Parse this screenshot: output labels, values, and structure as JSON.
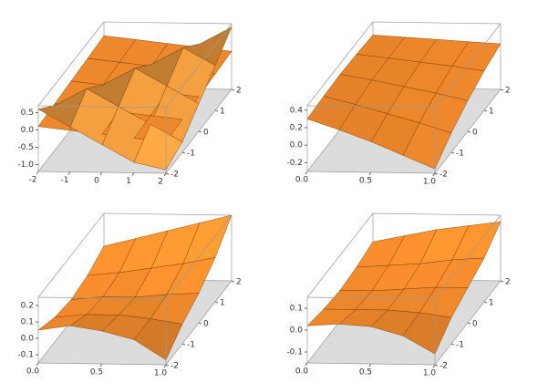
{
  "chart_data": [
    {
      "type": "surface",
      "xlim": [
        -2,
        2
      ],
      "ylim": [
        -2,
        2
      ],
      "zlim": [
        -1.2,
        0.7
      ],
      "xticks": [
        -2,
        -1,
        0,
        1,
        2
      ],
      "yticks": [
        -2,
        -1,
        0,
        1,
        2
      ],
      "zticks": [
        0.5,
        {
          "value": 0,
          "label": "0.0"
        },
        -0.5,
        {
          "value": -1,
          "label": "-1.0"
        }
      ],
      "x": [
        -2,
        -1,
        0,
        1,
        2
      ],
      "y": [
        -2,
        -1,
        0,
        1,
        2
      ],
      "series": [
        {
          "color": "#f0892c",
          "z": [
            [
              0.1,
              0.15,
              0.2,
              0.25,
              0.3
            ],
            [
              0,
              0.05,
              0.1,
              0.15,
              0.2
            ],
            [
              -0.1,
              -0.05,
              0,
              0.05,
              0.1
            ],
            [
              -0.2,
              -0.15,
              -0.1,
              -0.05,
              0
            ],
            [
              -0.3,
              -0.25,
              -0.2,
              -0.15,
              -0.1
            ]
          ]
        },
        {
          "color": "#f4a040",
          "z": [
            [
              0.6,
              0.1,
              -0.4,
              -0.9,
              -1.1
            ],
            [
              0.1,
              0.6,
              0.1,
              -0.4,
              -0.9
            ],
            [
              -0.4,
              0.1,
              0.6,
              0.1,
              -0.4
            ],
            [
              -0.9,
              -0.4,
              0.1,
              0.6,
              0.1
            ],
            [
              -1.1,
              -0.9,
              -0.4,
              0.1,
              0.6
            ]
          ]
        }
      ]
    },
    {
      "type": "surface",
      "xlim": [
        0,
        1
      ],
      "ylim": [
        -2,
        2
      ],
      "zlim": [
        -0.3,
        0.45
      ],
      "xticks": [
        {
          "value": 0,
          "label": "0.0"
        },
        0.5,
        {
          "value": 1,
          "label": "1.0"
        }
      ],
      "yticks": [
        -2,
        -1,
        0,
        1,
        2
      ],
      "zticks": [
        0.4,
        0.2,
        {
          "value": 0,
          "label": "0.0"
        },
        -0.2
      ],
      "x": [
        0,
        0.25,
        0.5,
        0.75,
        1
      ],
      "y": [
        -2,
        -1,
        0,
        1,
        2
      ],
      "series": [
        {
          "color": "#f0892c",
          "z": [
            [
              0.3,
              0.32,
              0.33,
              0.32,
              0.3
            ],
            [
              0.18,
              0.23,
              0.27,
              0.28,
              0.28
            ],
            [
              0.05,
              0.13,
              0.2,
              0.24,
              0.26
            ],
            [
              -0.1,
              0.03,
              0.13,
              0.2,
              0.24
            ],
            [
              -0.25,
              -0.08,
              0.05,
              0.15,
              0.22
            ]
          ]
        }
      ]
    },
    {
      "type": "surface",
      "xlim": [
        0,
        1
      ],
      "ylim": [
        -2,
        2
      ],
      "zlim": [
        -0.15,
        0.25
      ],
      "xticks": [
        {
          "value": 0,
          "label": "0.0"
        },
        0.5,
        {
          "value": 1,
          "label": "1.0"
        }
      ],
      "yticks": [
        -2,
        -1,
        0,
        1,
        2
      ],
      "zticks": [
        0.2,
        0.1,
        {
          "value": 0,
          "label": "0.0"
        },
        -0.1
      ],
      "x": [
        0,
        0.25,
        0.5,
        0.75,
        1
      ],
      "y": [
        -2,
        -1,
        0,
        1,
        2
      ],
      "series": [
        {
          "color": "#f0892c",
          "z": [
            [
              0.05,
              0,
              -0.02,
              0,
              0.05
            ],
            [
              0.08,
              0.02,
              0,
              0.02,
              0.1
            ],
            [
              0.05,
              0.02,
              0,
              0.05,
              0.15
            ],
            [
              0,
              0,
              0.02,
              0.08,
              0.2
            ],
            [
              -0.12,
              -0.03,
              0.03,
              0.12,
              0.25
            ]
          ]
        }
      ]
    },
    {
      "type": "surface",
      "xlim": [
        0,
        1
      ],
      "ylim": [
        -2,
        2
      ],
      "zlim": [
        -0.15,
        0.15
      ],
      "xticks": [
        {
          "value": 0,
          "label": "0.0"
        },
        0.5,
        {
          "value": 1,
          "label": "1.0"
        }
      ],
      "yticks": [
        -2,
        -1,
        0,
        1,
        2
      ],
      "zticks": [
        0.1,
        {
          "value": 0,
          "label": "0.0"
        },
        -0.1
      ],
      "x": [
        0,
        0.25,
        0.5,
        0.75,
        1
      ],
      "y": [
        -2,
        -1,
        0,
        1,
        2
      ],
      "series": [
        {
          "color": "#f0892c",
          "z": [
            [
              0.02,
              0,
              -0.01,
              0,
              0.02
            ],
            [
              0.03,
              0,
              -0.01,
              0.01,
              0.05
            ],
            [
              0.02,
              0,
              0,
              0.02,
              0.08
            ],
            [
              -0.02,
              -0.01,
              0.01,
              0.04,
              0.1
            ],
            [
              -0.1,
              -0.03,
              0.01,
              0.05,
              0.12
            ]
          ]
        }
      ]
    }
  ]
}
